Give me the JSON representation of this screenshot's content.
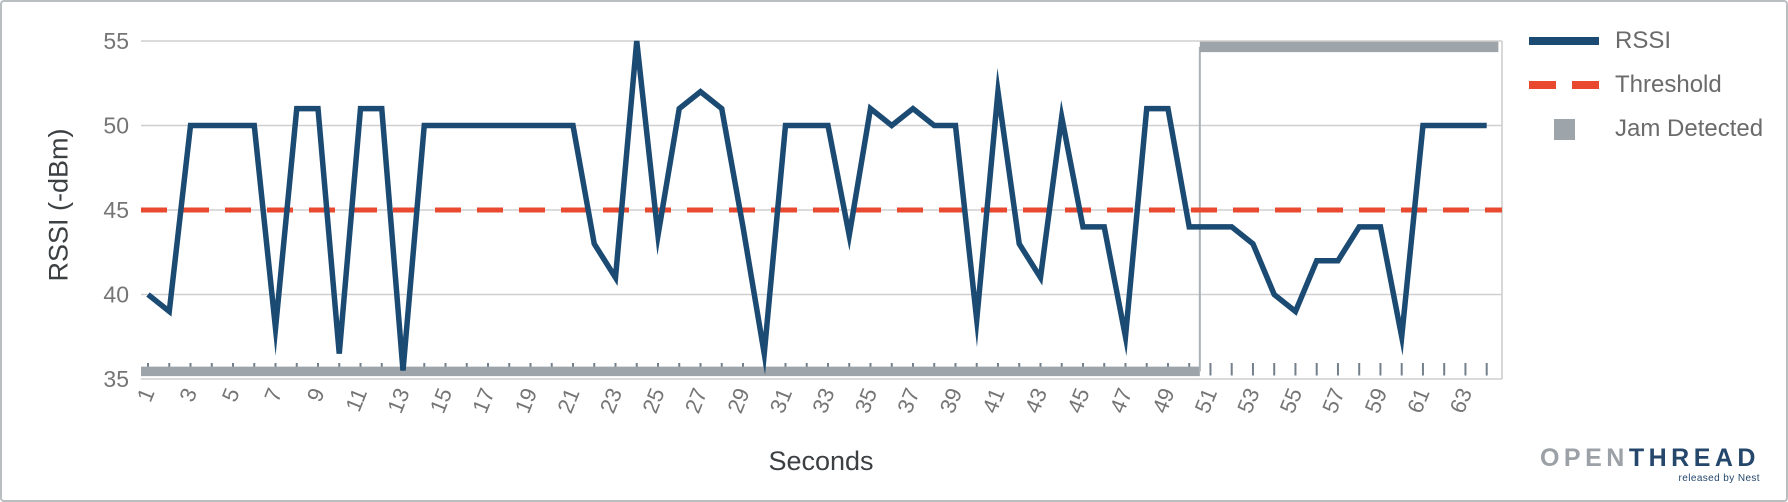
{
  "chart_data": {
    "type": "line",
    "title": "",
    "xlabel": "Seconds",
    "ylabel": "RSSI (-dBm)",
    "x_ticks": [
      1,
      3,
      5,
      7,
      9,
      11,
      13,
      15,
      17,
      19,
      21,
      23,
      25,
      27,
      29,
      31,
      33,
      35,
      37,
      39,
      41,
      43,
      45,
      47,
      49,
      51,
      53,
      55,
      57,
      59,
      61,
      63
    ],
    "y_ticks": [
      35,
      40,
      45,
      50,
      55
    ],
    "xlim": [
      0.67,
      64.72
    ],
    "ylim": [
      35,
      55
    ],
    "grid": "horizontal",
    "legend_position": "top-right",
    "series": [
      {
        "name": "RSSI",
        "kind": "line",
        "color": "#1b4a73",
        "x": [
          1,
          2,
          3,
          4,
          5,
          6,
          7,
          8,
          9,
          10,
          11,
          12,
          13,
          14,
          15,
          16,
          17,
          18,
          19,
          20,
          21,
          22,
          23,
          24,
          25,
          26,
          27,
          28,
          29,
          30,
          31,
          32,
          33,
          34,
          35,
          36,
          37,
          38,
          39,
          40,
          41,
          42,
          43,
          44,
          45,
          46,
          47,
          48,
          49,
          50,
          51,
          52,
          53,
          54,
          55,
          56,
          57,
          58,
          59,
          60,
          61,
          62,
          63,
          64
        ],
        "values": [
          40,
          39,
          50,
          50,
          50,
          50,
          38,
          51,
          51,
          36.5,
          51,
          51,
          35.5,
          50,
          50,
          50,
          50,
          50,
          50,
          50,
          50,
          43,
          41,
          55,
          43.5,
          51,
          52,
          51,
          44,
          36.5,
          50,
          50,
          50,
          43.5,
          51,
          50,
          51,
          50,
          50,
          38.5,
          52,
          43,
          41,
          50.5,
          44,
          44,
          37.5,
          51,
          51,
          44,
          44,
          44,
          43,
          40,
          39,
          42,
          42,
          44,
          44,
          37.5,
          50,
          50,
          50,
          50
        ]
      },
      {
        "name": "Threshold",
        "kind": "dashed-horizontal-line",
        "color": "#e8492f",
        "value": 45
      },
      {
        "name": "Jam Detected",
        "kind": "step",
        "color": "#9ea5aa",
        "off_value": 35.45,
        "on_value": 54.65,
        "off_from": 0.67,
        "transition_second": 50.5,
        "on_until": 64.55,
        "description": "jam not detected seconds 1-50, jam detected seconds 51-64"
      }
    ],
    "legend": [
      {
        "label": "RSSI",
        "marker": "line",
        "color": "#1b4a73"
      },
      {
        "label": "Threshold",
        "marker": "dash",
        "color": "#e8492f"
      },
      {
        "label": "Jam Detected",
        "marker": "square",
        "color": "#9ea5aa"
      }
    ],
    "colors": {
      "gridline": "#cfcfcf",
      "tick_label": "#757575",
      "axis_title": "#3c4043",
      "legend_text": "#6b6b6b",
      "tick_mark": "#73808b",
      "jam_connector": "#aab1b5"
    }
  },
  "branding": {
    "word_open": "OPEN",
    "word_thread": "THREAD",
    "tagline": "released by Nest"
  }
}
